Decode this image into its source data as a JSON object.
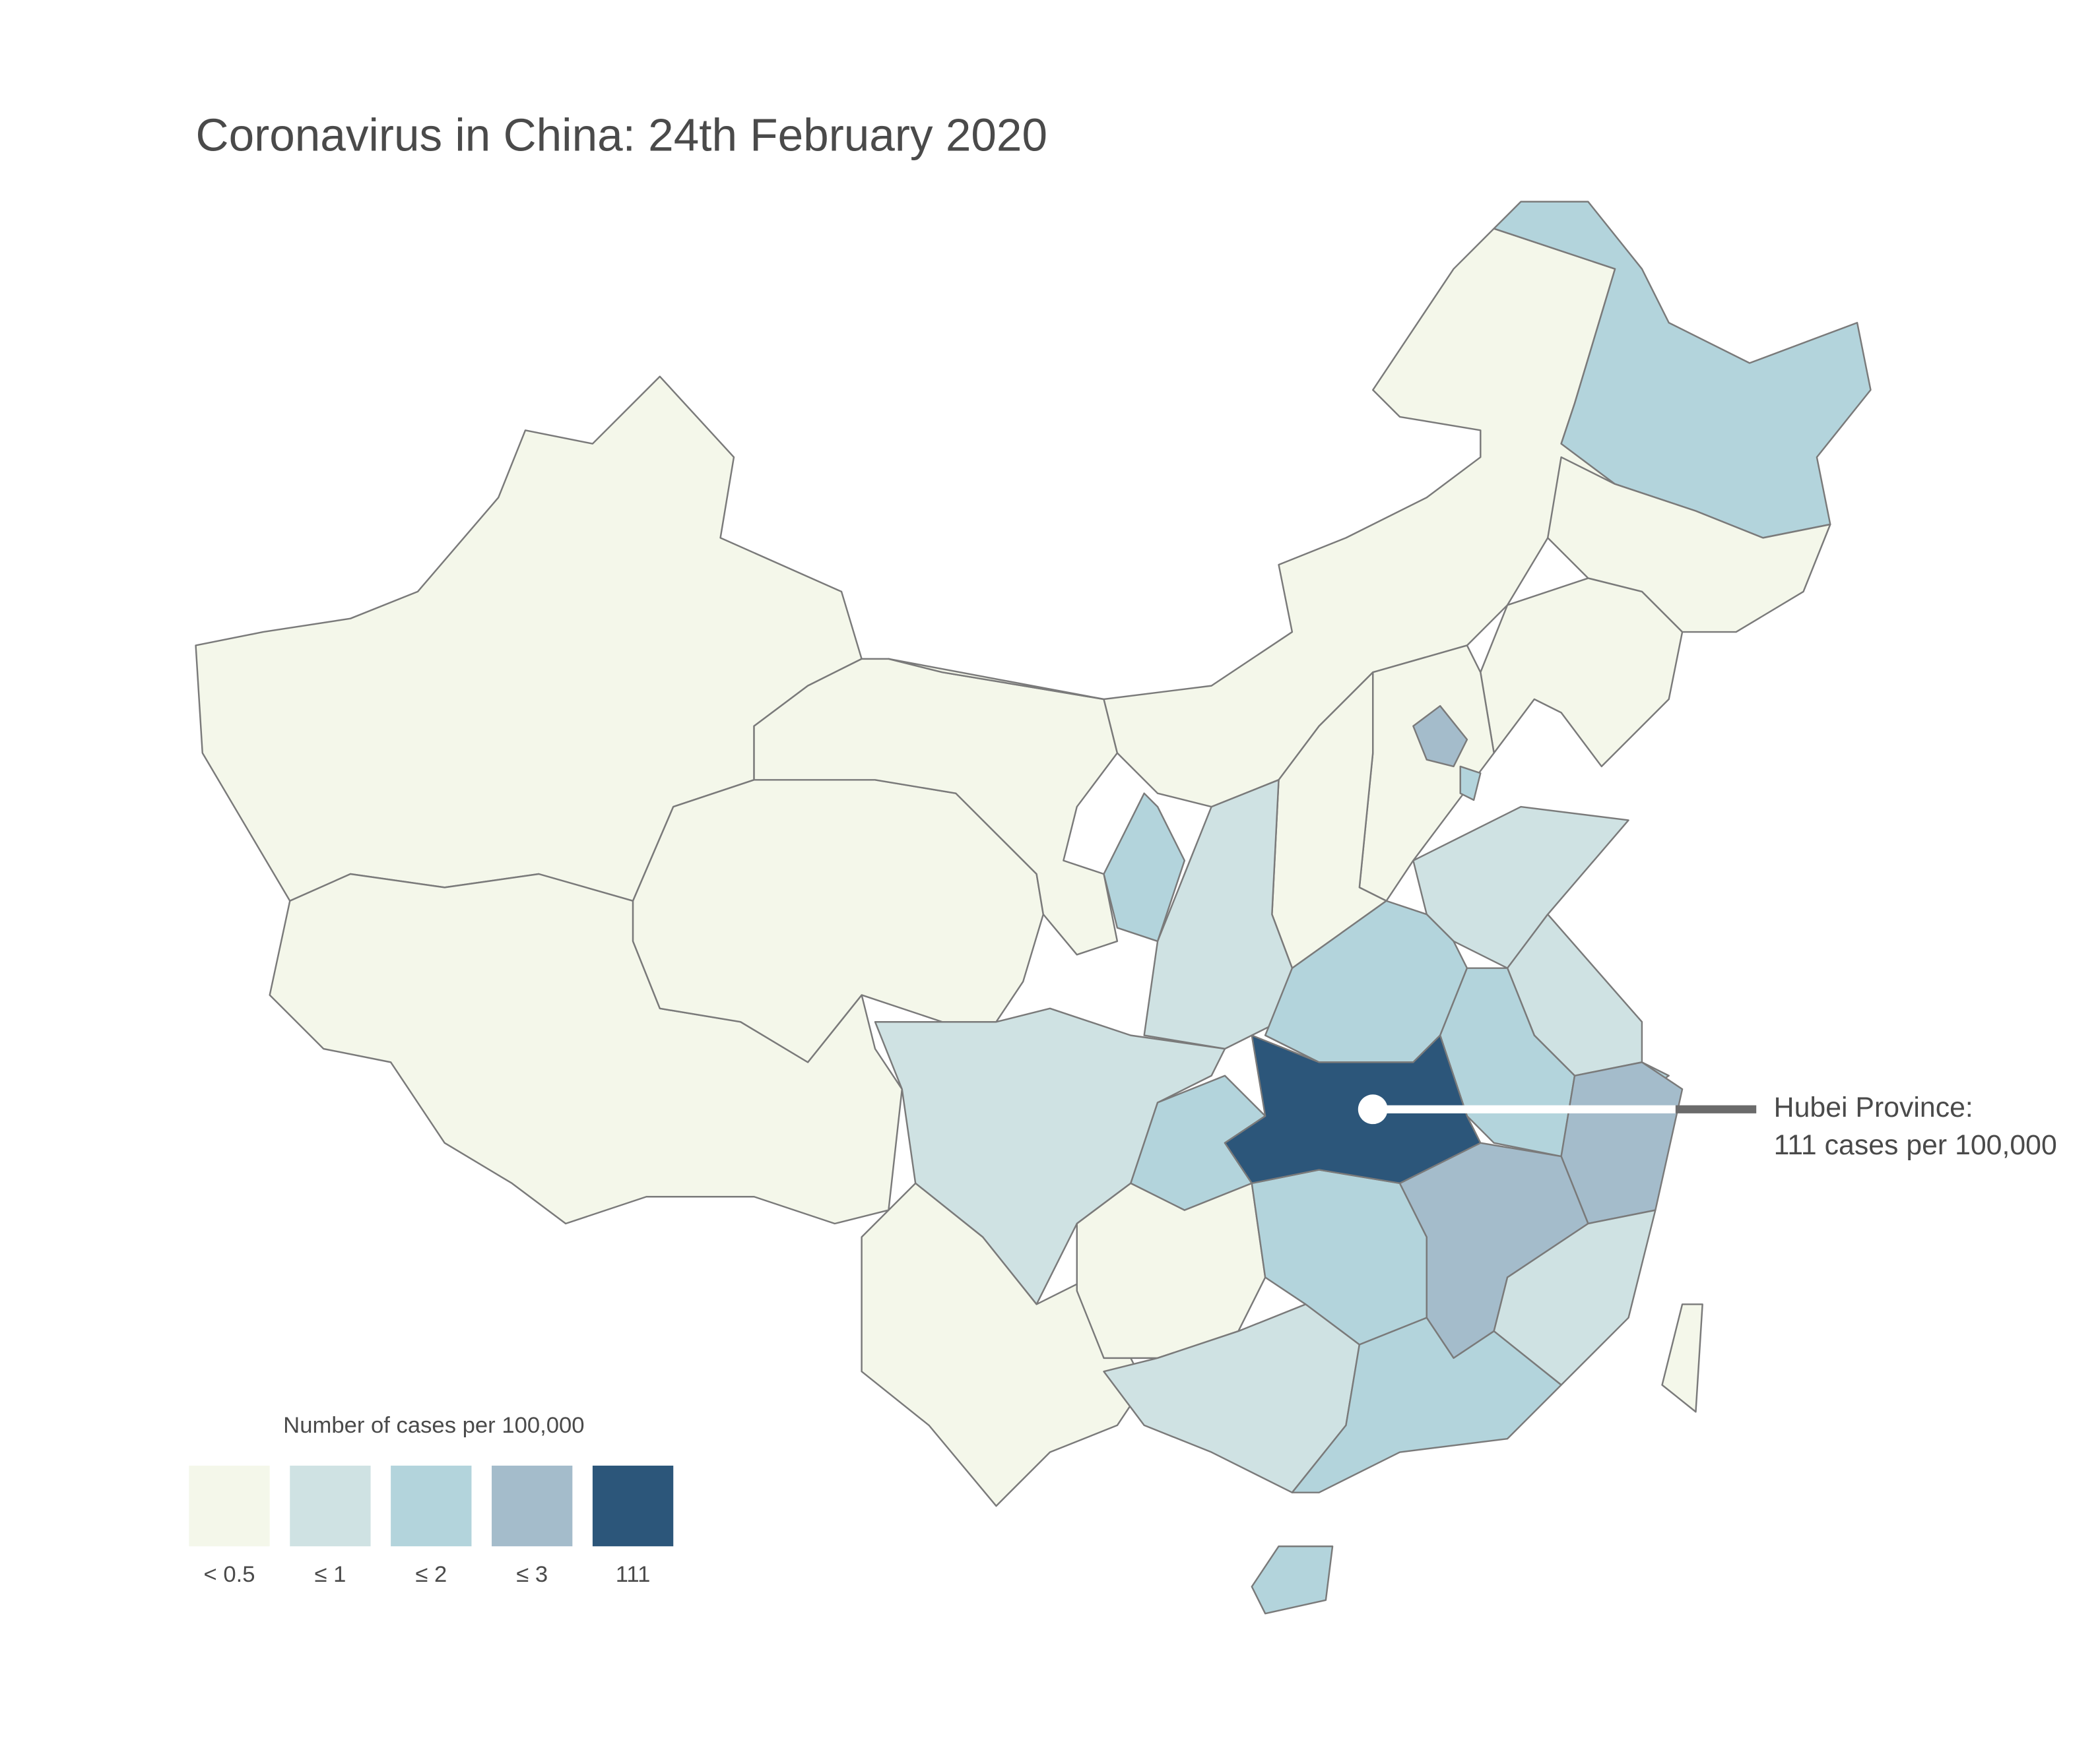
{
  "title": "Coronavirus in China: 24th February 2020",
  "legend": {
    "title": "Number of cases per 100,000",
    "items": [
      {
        "label": "< 0.5",
        "color": "#f4f7ea"
      },
      {
        "label": "≤ 1",
        "color": "#cfe2e3"
      },
      {
        "label": "≤ 2",
        "color": "#b3d4dc"
      },
      {
        "label": "≤ 3",
        "color": "#a4bccb"
      },
      {
        "label": "111",
        "color": "#2c567a"
      }
    ]
  },
  "annotation": {
    "lines": [
      "Hubei Province:",
      "111 cases per 100,000"
    ]
  }
}
